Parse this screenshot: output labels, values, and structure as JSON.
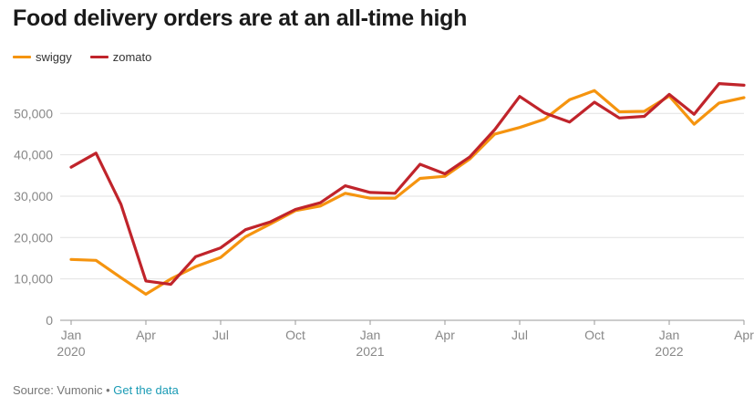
{
  "title": "Food delivery orders are at an all-time high",
  "footer": {
    "source": "Source: Vumonic",
    "separator": " • ",
    "link": "Get the data"
  },
  "chart_data": {
    "type": "line",
    "x": [
      "Jan 2020",
      "Feb 2020",
      "Mar 2020",
      "Apr 2020",
      "May 2020",
      "Jun 2020",
      "Jul 2020",
      "Aug 2020",
      "Sep 2020",
      "Oct 2020",
      "Nov 2020",
      "Dec 2020",
      "Jan 2021",
      "Feb 2021",
      "Mar 2021",
      "Apr 2021",
      "May 2021",
      "Jun 2021",
      "Jul 2021",
      "Aug 2021",
      "Sep 2021",
      "Oct 2021",
      "Nov 2021",
      "Dec 2021",
      "Jan 2022",
      "Feb 2022",
      "Mar 2022",
      "Apr 2022"
    ],
    "tick_labels": [
      {
        "index": 0,
        "label": "Jan",
        "year": "2020"
      },
      {
        "index": 3,
        "label": "Apr",
        "year": ""
      },
      {
        "index": 6,
        "label": "Jul",
        "year": ""
      },
      {
        "index": 9,
        "label": "Oct",
        "year": ""
      },
      {
        "index": 12,
        "label": "Jan",
        "year": "2021"
      },
      {
        "index": 15,
        "label": "Apr",
        "year": ""
      },
      {
        "index": 18,
        "label": "Jul",
        "year": ""
      },
      {
        "index": 21,
        "label": "Oct",
        "year": ""
      },
      {
        "index": 24,
        "label": "Jan",
        "year": "2022"
      },
      {
        "index": 27,
        "label": "Apr",
        "year": ""
      }
    ],
    "series": [
      {
        "name": "swiggy",
        "color": "#f5940f",
        "values": [
          14700,
          14500,
          10300,
          6300,
          10000,
          13000,
          15200,
          20200,
          23300,
          26500,
          27600,
          30700,
          29500,
          29500,
          34300,
          34800,
          39000,
          45000,
          46600,
          48600,
          53300,
          55500,
          50400,
          50500,
          54200,
          47400,
          52500,
          53800
        ]
      },
      {
        "name": "zomato",
        "color": "#c0242b",
        "values": [
          37000,
          40400,
          28000,
          9500,
          8700,
          15400,
          17500,
          21900,
          23800,
          26800,
          28400,
          32500,
          30900,
          30700,
          37700,
          35400,
          39500,
          46100,
          54100,
          50100,
          47900,
          52700,
          48900,
          49300,
          54600,
          49800,
          57200,
          56800
        ]
      }
    ],
    "y_ticks": [
      0,
      10000,
      20000,
      30000,
      40000,
      50000
    ],
    "y_tick_labels": [
      "0",
      "10,000",
      "20,000",
      "30,000",
      "40,000",
      "50,000"
    ],
    "ylim": [
      0,
      58000
    ],
    "xlabel": "",
    "ylabel": "",
    "grid": true,
    "legend_position": "top-left"
  }
}
